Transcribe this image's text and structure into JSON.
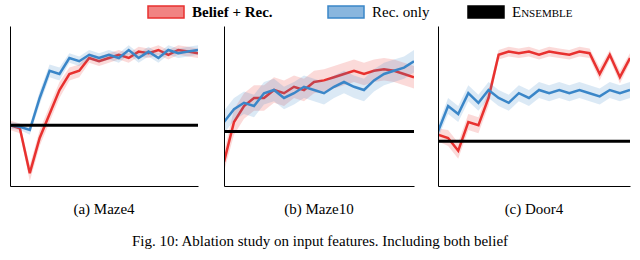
{
  "chart_data": [
    {
      "type": "line",
      "title": "(a) Maze4",
      "tick_labels": false,
      "legend": "top",
      "x": [
        0,
        1,
        2,
        3,
        4,
        5,
        6,
        7,
        8,
        9,
        10,
        11,
        12,
        13,
        14,
        15,
        16,
        17,
        18,
        19
      ],
      "xlim": [
        0,
        19
      ],
      "ylim": [
        0,
        1
      ],
      "series": [
        {
          "name": "Belief + Rec.",
          "color": "#e8312f",
          "values": [
            0.38,
            0.36,
            0.08,
            0.3,
            0.45,
            0.6,
            0.7,
            0.72,
            0.8,
            0.78,
            0.8,
            0.82,
            0.8,
            0.84,
            0.83,
            0.85,
            0.82,
            0.85,
            0.84,
            0.83
          ],
          "errors": [
            0.03,
            0.03,
            0.05,
            0.05,
            0.05,
            0.05,
            0.04,
            0.04,
            0.03,
            0.03,
            0.03,
            0.03,
            0.03,
            0.03,
            0.03,
            0.03,
            0.03,
            0.03,
            0.03,
            0.03
          ]
        },
        {
          "name": "Rec. only",
          "color": "#3a86c8",
          "values": [
            0.38,
            0.37,
            0.35,
            0.55,
            0.72,
            0.7,
            0.8,
            0.78,
            0.82,
            0.8,
            0.82,
            0.8,
            0.85,
            0.8,
            0.84,
            0.8,
            0.85,
            0.83,
            0.84,
            0.85
          ],
          "errors": [
            0.02,
            0.02,
            0.03,
            0.04,
            0.04,
            0.04,
            0.03,
            0.03,
            0.03,
            0.03,
            0.03,
            0.03,
            0.03,
            0.03,
            0.03,
            0.03,
            0.03,
            0.03,
            0.03,
            0.03
          ]
        },
        {
          "name": "Ensemble",
          "color": "#000000",
          "values": [
            0.38,
            0.38,
            0.38,
            0.38,
            0.38,
            0.38,
            0.38,
            0.38,
            0.38,
            0.38,
            0.38,
            0.38,
            0.38,
            0.38,
            0.38,
            0.38,
            0.38,
            0.38,
            0.38,
            0.38
          ]
        }
      ]
    },
    {
      "type": "line",
      "title": "(b) Maze10",
      "tick_labels": false,
      "x": [
        0,
        1,
        2,
        3,
        4,
        5,
        6,
        7,
        8,
        9,
        10,
        11,
        12,
        13,
        14,
        15,
        16,
        17,
        18,
        19
      ],
      "xlim": [
        0,
        19
      ],
      "ylim": [
        0,
        1
      ],
      "series": [
        {
          "color": "#e8312f",
          "values": [
            0.15,
            0.4,
            0.5,
            0.55,
            0.55,
            0.6,
            0.58,
            0.62,
            0.6,
            0.65,
            0.66,
            0.68,
            0.7,
            0.72,
            0.7,
            0.72,
            0.73,
            0.72,
            0.7,
            0.68
          ],
          "errors": [
            0.06,
            0.08,
            0.08,
            0.08,
            0.08,
            0.08,
            0.08,
            0.07,
            0.07,
            0.07,
            0.07,
            0.07,
            0.07,
            0.07,
            0.07,
            0.07,
            0.07,
            0.07,
            0.07,
            0.07
          ]
        },
        {
          "color": "#3a86c8",
          "values": [
            0.4,
            0.48,
            0.52,
            0.5,
            0.58,
            0.6,
            0.55,
            0.58,
            0.62,
            0.6,
            0.58,
            0.62,
            0.65,
            0.62,
            0.6,
            0.66,
            0.7,
            0.72,
            0.74,
            0.78
          ],
          "errors": [
            0.07,
            0.07,
            0.07,
            0.07,
            0.07,
            0.07,
            0.07,
            0.07,
            0.07,
            0.07,
            0.07,
            0.07,
            0.07,
            0.07,
            0.07,
            0.07,
            0.07,
            0.07,
            0.07,
            0.07
          ]
        },
        {
          "color": "#000000",
          "values": [
            0.34,
            0.34,
            0.34,
            0.34,
            0.34,
            0.34,
            0.34,
            0.34,
            0.34,
            0.34,
            0.34,
            0.34,
            0.34,
            0.34,
            0.34,
            0.34,
            0.34,
            0.34,
            0.34,
            0.34
          ]
        }
      ]
    },
    {
      "type": "line",
      "title": "(c) Door4",
      "tick_labels": false,
      "x": [
        0,
        1,
        2,
        3,
        4,
        5,
        6,
        7,
        8,
        9,
        10,
        11,
        12,
        13,
        14,
        15,
        16,
        17,
        18,
        19
      ],
      "xlim": [
        0,
        19
      ],
      "ylim": [
        0,
        1
      ],
      "series": [
        {
          "color": "#e8312f",
          "values": [
            0.32,
            0.3,
            0.22,
            0.4,
            0.38,
            0.55,
            0.82,
            0.84,
            0.83,
            0.84,
            0.82,
            0.84,
            0.83,
            0.82,
            0.84,
            0.83,
            0.7,
            0.82,
            0.68,
            0.8
          ],
          "errors": [
            0.04,
            0.05,
            0.05,
            0.05,
            0.05,
            0.05,
            0.03,
            0.03,
            0.03,
            0.03,
            0.03,
            0.03,
            0.03,
            0.03,
            0.03,
            0.03,
            0.04,
            0.03,
            0.04,
            0.03
          ]
        },
        {
          "color": "#3a86c8",
          "values": [
            0.34,
            0.5,
            0.45,
            0.58,
            0.52,
            0.6,
            0.55,
            0.52,
            0.58,
            0.55,
            0.6,
            0.58,
            0.6,
            0.58,
            0.6,
            0.58,
            0.56,
            0.6,
            0.58,
            0.6
          ],
          "errors": [
            0.04,
            0.05,
            0.05,
            0.05,
            0.05,
            0.05,
            0.05,
            0.05,
            0.05,
            0.05,
            0.05,
            0.05,
            0.05,
            0.05,
            0.05,
            0.05,
            0.05,
            0.05,
            0.05,
            0.05
          ]
        },
        {
          "color": "#000000",
          "values": [
            0.28,
            0.28,
            0.28,
            0.28,
            0.28,
            0.28,
            0.28,
            0.28,
            0.28,
            0.28,
            0.28,
            0.28,
            0.28,
            0.28,
            0.28,
            0.28,
            0.28,
            0.28,
            0.28,
            0.28
          ]
        }
      ]
    }
  ],
  "caption": "Fig. 10: Ablation study on input features. Including both belief"
}
